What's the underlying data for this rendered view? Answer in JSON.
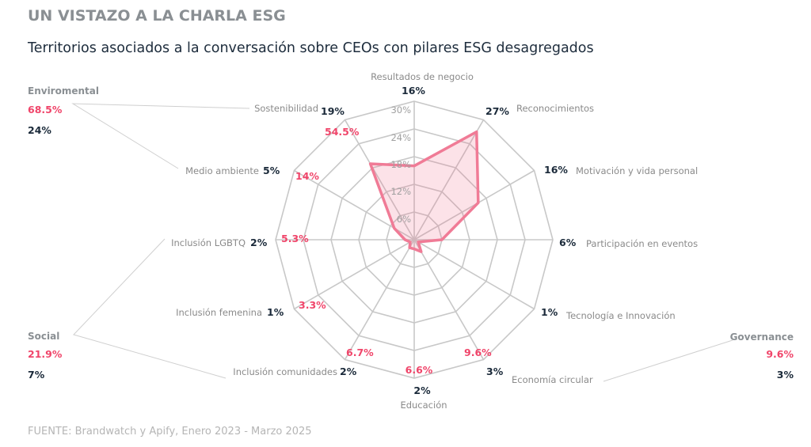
{
  "header": {
    "title": "UN VISTAZO A LA CHARLA ESG",
    "subtitle": "Territorios asociados a la conversación sobre CEOs con  pilares ESG desagregados"
  },
  "footer": "FUENTE: Brandwatch y Apify, Enero 2023 - Marzo 2025",
  "colors": {
    "series": "#f07b96",
    "share_text": "#f0456a",
    "value_text": "#1b2a3a",
    "grid": "#c8c8c8"
  },
  "pillars": {
    "environmental": {
      "label": "Enviromental",
      "share": "68.5%",
      "value": "24%"
    },
    "social": {
      "label": "Social",
      "share": "21.9%",
      "value": "7%"
    },
    "governance": {
      "label": "Governance",
      "share": "9.6%",
      "value": "3%"
    }
  },
  "chart_data": {
    "type": "radar",
    "rmax": 30,
    "ring_ticks": [
      "6%",
      "12%",
      "18%",
      "24%",
      "30%"
    ],
    "ring_values": [
      6,
      12,
      18,
      24,
      30
    ],
    "grid": true,
    "axes": [
      {
        "label": "Resultados de negocio",
        "value": 16,
        "value_label": "16%"
      },
      {
        "label": "Reconocimientos",
        "value": 27,
        "value_label": "27%"
      },
      {
        "label": "Motivación y vida personal",
        "value": 16,
        "value_label": "16%"
      },
      {
        "label": "Participación en eventos",
        "value": 6,
        "value_label": "6%"
      },
      {
        "label": "Tecnología e Innovación",
        "value": 1,
        "value_label": "1%"
      },
      {
        "label": "Economía circular",
        "value": 3,
        "value_label": "3%",
        "pillar_share": "9.6%"
      },
      {
        "label": "Educación",
        "value": 2,
        "value_label": "2%",
        "pillar_share": "6.6%"
      },
      {
        "label": "Inclusión comunidades",
        "value": 2,
        "value_label": "2%",
        "pillar_share": "6.7%"
      },
      {
        "label": "Inclusión femenina",
        "value": 1,
        "value_label": "1%",
        "pillar_share": "3.3%"
      },
      {
        "label": "Inclusión LGBTQ",
        "value": 2,
        "value_label": "2%",
        "pillar_share": "5.3%"
      },
      {
        "label": "Medio ambiente",
        "value": 5,
        "value_label": "5%",
        "pillar_share": "14%"
      },
      {
        "label": "Sostenibilidad",
        "value": 19,
        "value_label": "19%",
        "pillar_share": "54.5%"
      }
    ]
  }
}
